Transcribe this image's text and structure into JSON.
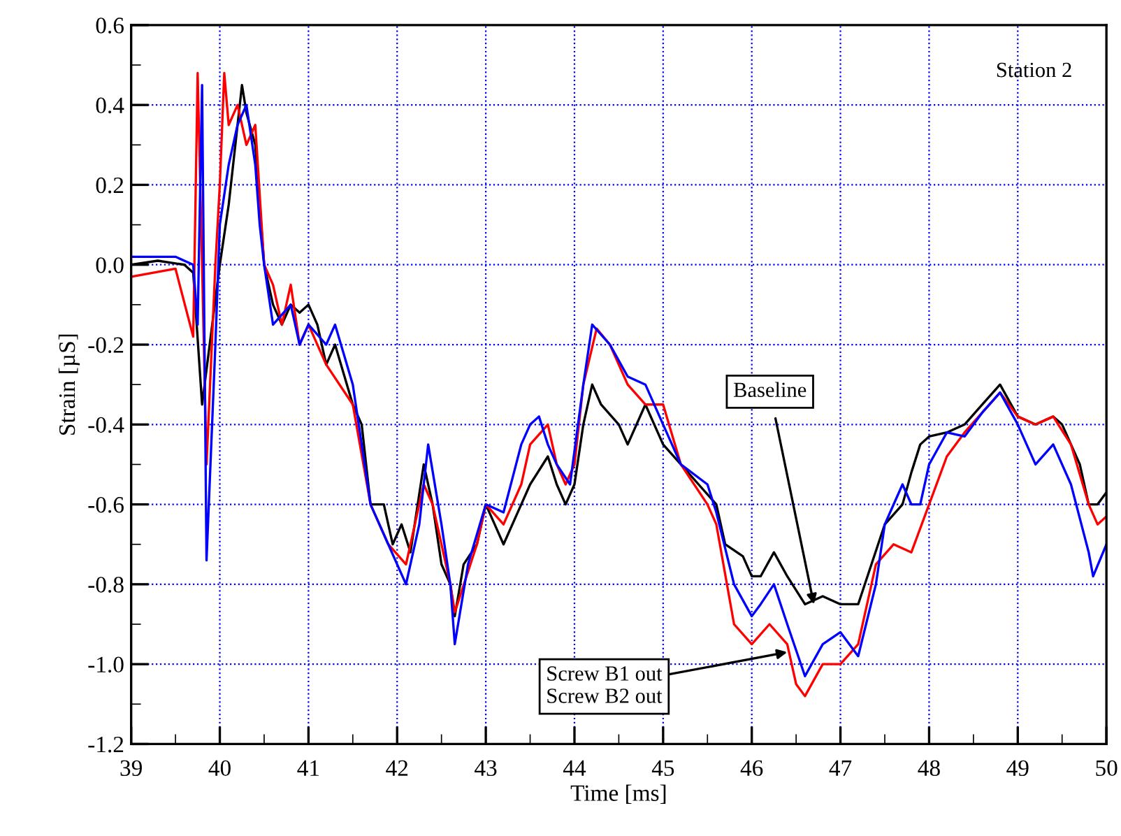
{
  "chart_data": {
    "type": "line",
    "xlabel": "Time [ms]",
    "ylabel": "Strain [µS]",
    "xlim": [
      39,
      50
    ],
    "xticks": [
      39,
      40,
      41,
      42,
      43,
      44,
      45,
      46,
      47,
      48,
      49,
      50
    ],
    "ylim": [
      -1.2,
      0.6
    ],
    "yticks": [
      {
        "value": -1.2,
        "label": "-1.2"
      },
      {
        "value": -1.0,
        "label": "-1.0"
      },
      {
        "value": -0.8,
        "label": "-0.8"
      },
      {
        "value": -0.6,
        "label": "-0.6"
      },
      {
        "value": -0.4,
        "label": "-0.4"
      },
      {
        "value": -0.2,
        "label": "-0.2"
      },
      {
        "value": 0.0,
        "label": "0.0"
      },
      {
        "value": 0.2,
        "label": "0.2"
      },
      {
        "value": 0.4,
        "label": "0.4"
      },
      {
        "value": 0.6,
        "label": "0.6"
      }
    ],
    "grid": true,
    "legend": false,
    "marker": "none",
    "line_style": "solid",
    "annotations": [
      "Station 2",
      {
        "text": "Baseline",
        "x": 46.7,
        "y": -0.85
      },
      {
        "text": "Screw B1 out\nScrew B2 out",
        "x": 46.4,
        "y": -0.97
      }
    ],
    "series": [
      {
        "color": "#000000",
        "x": [
          39.0,
          39.3,
          39.6,
          39.7,
          39.8,
          40.0,
          40.1,
          40.2,
          40.25,
          40.3,
          40.4,
          40.45,
          40.5,
          40.6,
          40.7,
          40.8,
          40.9,
          41.0,
          41.1,
          41.2,
          41.3,
          41.5,
          41.6,
          41.7,
          41.85,
          41.95,
          42.05,
          42.15,
          42.3,
          42.4,
          42.5,
          42.6,
          42.65,
          42.75,
          42.9,
          43.0,
          43.1,
          43.2,
          43.4,
          43.5,
          43.7,
          43.8,
          43.9,
          44.0,
          44.1,
          44.2,
          44.3,
          44.5,
          44.6,
          44.8,
          45.0,
          45.2,
          45.4,
          45.6,
          45.7,
          45.9,
          46.0,
          46.1,
          46.25,
          46.4,
          46.6,
          46.8,
          47.0,
          47.2,
          47.35,
          47.5,
          47.7,
          47.8,
          47.9,
          48.0,
          48.2,
          48.4,
          48.6,
          48.8,
          49.0,
          49.2,
          49.4,
          49.5,
          49.7,
          49.8,
          49.9,
          50.0
        ],
        "values": [
          0.0,
          0.01,
          0.0,
          -0.02,
          -0.35,
          0.0,
          0.15,
          0.35,
          0.45,
          0.38,
          0.3,
          0.15,
          0.0,
          -0.1,
          -0.15,
          -0.1,
          -0.12,
          -0.1,
          -0.15,
          -0.25,
          -0.2,
          -0.35,
          -0.4,
          -0.6,
          -0.6,
          -0.7,
          -0.65,
          -0.72,
          -0.5,
          -0.6,
          -0.75,
          -0.8,
          -0.88,
          -0.75,
          -0.7,
          -0.6,
          -0.65,
          -0.7,
          -0.6,
          -0.55,
          -0.48,
          -0.55,
          -0.6,
          -0.55,
          -0.4,
          -0.3,
          -0.35,
          -0.4,
          -0.45,
          -0.35,
          -0.45,
          -0.5,
          -0.55,
          -0.6,
          -0.7,
          -0.73,
          -0.78,
          -0.78,
          -0.72,
          -0.78,
          -0.85,
          -0.83,
          -0.85,
          -0.85,
          -0.75,
          -0.65,
          -0.6,
          -0.52,
          -0.45,
          -0.43,
          -0.42,
          -0.4,
          -0.35,
          -0.3,
          -0.38,
          -0.4,
          -0.38,
          -0.4,
          -0.5,
          -0.6,
          -0.6,
          -0.57
        ]
      },
      {
        "color": "#ff0000",
        "x": [
          39.0,
          39.5,
          39.7,
          39.75,
          39.8,
          39.85,
          39.95,
          40.0,
          40.05,
          40.1,
          40.2,
          40.3,
          40.4,
          40.5,
          40.6,
          40.7,
          40.8,
          40.9,
          41.0,
          41.2,
          41.5,
          41.7,
          41.9,
          42.1,
          42.3,
          42.4,
          42.6,
          42.65,
          42.9,
          43.0,
          43.2,
          43.4,
          43.5,
          43.7,
          43.8,
          43.9,
          44.0,
          44.1,
          44.25,
          44.4,
          44.6,
          44.8,
          45.0,
          45.2,
          45.5,
          45.6,
          45.8,
          46.0,
          46.2,
          46.4,
          46.5,
          46.6,
          46.8,
          47.0,
          47.2,
          47.4,
          47.6,
          47.8,
          48.0,
          48.2,
          48.4,
          48.6,
          48.8,
          49.0,
          49.2,
          49.4,
          49.6,
          49.8,
          49.9,
          50.0
        ],
        "values": [
          -0.03,
          -0.01,
          -0.18,
          0.48,
          0.0,
          -0.5,
          0.0,
          0.2,
          0.48,
          0.35,
          0.4,
          0.3,
          0.35,
          0.0,
          -0.05,
          -0.15,
          -0.05,
          -0.2,
          -0.15,
          -0.25,
          -0.35,
          -0.6,
          -0.7,
          -0.75,
          -0.55,
          -0.6,
          -0.8,
          -0.87,
          -0.7,
          -0.6,
          -0.65,
          -0.55,
          -0.45,
          -0.4,
          -0.5,
          -0.55,
          -0.5,
          -0.3,
          -0.16,
          -0.2,
          -0.3,
          -0.35,
          -0.35,
          -0.5,
          -0.6,
          -0.65,
          -0.9,
          -0.95,
          -0.9,
          -0.95,
          -1.05,
          -1.08,
          -1.0,
          -1.0,
          -0.95,
          -0.75,
          -0.7,
          -0.72,
          -0.6,
          -0.48,
          -0.42,
          -0.37,
          -0.32,
          -0.38,
          -0.4,
          -0.38,
          -0.45,
          -0.6,
          -0.65,
          -0.63
        ]
      },
      {
        "color": "#0000ff",
        "x": [
          39.0,
          39.5,
          39.7,
          39.75,
          39.8,
          39.85,
          39.95,
          40.0,
          40.1,
          40.2,
          40.3,
          40.4,
          40.45,
          40.5,
          40.6,
          40.8,
          40.9,
          41.0,
          41.2,
          41.3,
          41.5,
          41.7,
          41.9,
          42.1,
          42.25,
          42.35,
          42.5,
          42.6,
          42.65,
          42.8,
          43.0,
          43.2,
          43.4,
          43.5,
          43.6,
          43.7,
          43.8,
          43.95,
          44.1,
          44.2,
          44.4,
          44.6,
          44.8,
          45.0,
          45.2,
          45.5,
          45.6,
          45.8,
          46.0,
          46.1,
          46.25,
          46.4,
          46.6,
          46.8,
          47.0,
          47.2,
          47.4,
          47.5,
          47.7,
          47.8,
          47.9,
          48.0,
          48.2,
          48.4,
          48.6,
          48.8,
          49.0,
          49.2,
          49.4,
          49.6,
          49.8,
          49.85,
          50.0
        ],
        "values": [
          0.02,
          0.02,
          0.0,
          -0.15,
          0.45,
          -0.74,
          -0.2,
          0.1,
          0.25,
          0.35,
          0.4,
          0.25,
          0.1,
          0.0,
          -0.15,
          -0.1,
          -0.2,
          -0.15,
          -0.2,
          -0.15,
          -0.3,
          -0.6,
          -0.7,
          -0.8,
          -0.65,
          -0.45,
          -0.65,
          -0.8,
          -0.95,
          -0.75,
          -0.6,
          -0.62,
          -0.45,
          -0.4,
          -0.38,
          -0.45,
          -0.5,
          -0.55,
          -0.3,
          -0.15,
          -0.2,
          -0.28,
          -0.3,
          -0.4,
          -0.5,
          -0.55,
          -0.62,
          -0.8,
          -0.88,
          -0.85,
          -0.8,
          -0.9,
          -1.03,
          -0.95,
          -0.92,
          -0.98,
          -0.8,
          -0.65,
          -0.55,
          -0.6,
          -0.6,
          -0.5,
          -0.42,
          -0.43,
          -0.37,
          -0.32,
          -0.4,
          -0.5,
          -0.45,
          -0.55,
          -0.72,
          -0.78,
          -0.7
        ]
      }
    ]
  }
}
